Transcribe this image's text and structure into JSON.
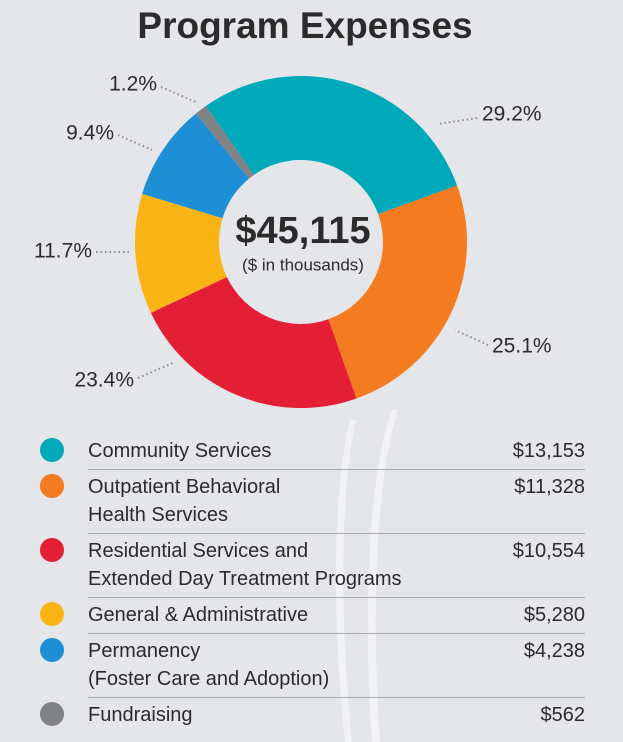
{
  "chart_data": {
    "type": "donut",
    "title": "Program Expenses",
    "center_label": "$45,115",
    "center_sublabel": "($ in thousands)",
    "categories": [
      "Community Services",
      "Outpatient Behavioral\nHealth Services",
      "Residential Services and\nExtended Day Treatment Programs",
      "General & Administrative",
      "Permanency\n(Foster Care and Adoption)",
      "Fundraising"
    ],
    "values": [
      29.2,
      25.1,
      23.4,
      11.7,
      9.4,
      1.2
    ],
    "value_labels": [
      "29.2%",
      "25.1%",
      "23.4%",
      "11.7%",
      "9.4%",
      "1.2%"
    ],
    "amounts": [
      "$13,153",
      "$11,328",
      "$10,554",
      "$5,280",
      "$4,238",
      "$562"
    ],
    "colors": [
      "#00a9b9",
      "#f47b20",
      "#e41e35",
      "#fbb415",
      "#1e8fd5",
      "#808285"
    ]
  }
}
